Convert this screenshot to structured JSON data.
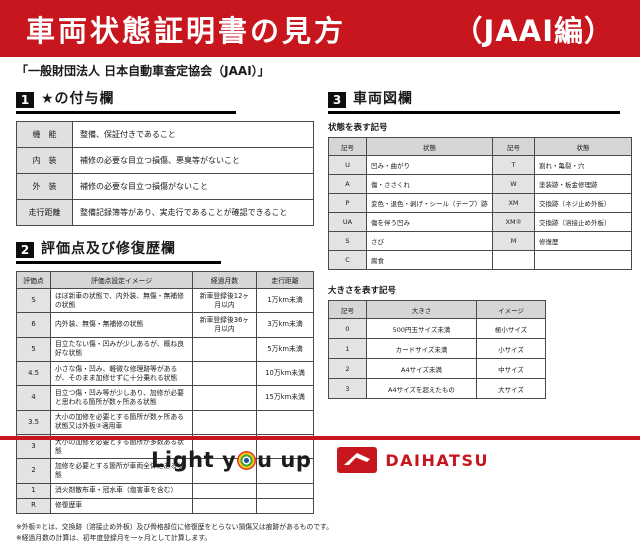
{
  "colors": {
    "banner_red": "#c8161e",
    "table_gray": "#d6d6d6",
    "cell_gray": "#e3e3e3"
  },
  "header": {
    "title": "車両状態証明書の見方",
    "edition": "（JAAI編）"
  },
  "subtitle": "「一般財団法人 日本自動車査定協会（JAAI）」",
  "section1": {
    "number": "1",
    "title": "★の付与欄",
    "table": {
      "rows": [
        [
          "機　能",
          "整備、保証付きであること"
        ],
        [
          "内　装",
          "補修の必要な目立つ損傷、悪臭等がないこと"
        ],
        [
          "外　装",
          "補修の必要な目立つ損傷がないこと"
        ],
        [
          "走行距離",
          "整備記録簿等があり、実走行であることが確認できること"
        ]
      ]
    }
  },
  "section2": {
    "number": "2",
    "title": "評価点及び修復歴欄",
    "table": {
      "headers": [
        "評価点",
        "評価点設定イメージ",
        "経過月数",
        "走行距離"
      ],
      "rows": [
        [
          "S",
          "ほぼ新車の状態で、内外装、無傷・無補修の状態",
          "新車登録後12ヶ月以内",
          "1万km未満"
        ],
        [
          "6",
          "内外装、無傷・無補修の状態",
          "新車登録後36ヶ月以内",
          "3万km未満"
        ],
        [
          "5",
          "目立たない傷・凹みが少しあるが、概ね良好な状態",
          "",
          "5万km未満"
        ],
        [
          "4.5",
          "小さな傷・凹み、軽微な修理跡等があるが、そのまま加修せずに十分乗れる状態",
          "",
          "10万km未満"
        ],
        [
          "4",
          "目立つ傷・凹み等が少しあり、加修が必要と思われる箇所が数ヶ所ある状態",
          "",
          "15万km未満"
        ],
        [
          "3.5",
          "大小の加修を必要とする箇所が数ヶ所ある状態又は外板②適用車",
          "",
          ""
        ],
        [
          "3",
          "大小の加修を必要とする箇所が多数ある状態",
          "",
          ""
        ],
        [
          "2",
          "加修を必要とする箇所が車両全体にある状態",
          "",
          ""
        ],
        [
          "1",
          "消火剤散布車・冠水車（塩害車を含む）",
          "",
          ""
        ],
        [
          "R",
          "修復歴車",
          "",
          ""
        ]
      ]
    }
  },
  "section3": {
    "number": "3",
    "title": "車両図欄",
    "state_table": {
      "label": "状態を表す記号",
      "headers": [
        "記号",
        "状態",
        "記号",
        "状態"
      ],
      "rows": [
        [
          "U",
          "凹み・曲がり",
          "T",
          "割れ・亀裂・穴"
        ],
        [
          "A",
          "傷・ささくれ",
          "W",
          "塗装跡・板金修理跡"
        ],
        [
          "P",
          "変色・退色・剥げ・シール（テープ）跡",
          "XM",
          "交換跡（ネジ止め外板）"
        ],
        [
          "UA",
          "傷を伴う凹み",
          "XM②",
          "交換跡（溶接止め外板）"
        ],
        [
          "S",
          "さび",
          "M",
          "修復歴"
        ],
        [
          "C",
          "腐食",
          "",
          ""
        ]
      ]
    },
    "size_table": {
      "label": "大きさを表す記号",
      "headers": [
        "記号",
        "大きさ",
        "イメージ"
      ],
      "rows": [
        [
          "0",
          "500円玉サイズ未満",
          "極小サイズ"
        ],
        [
          "1",
          "カードサイズ未満",
          "小サイズ"
        ],
        [
          "2",
          "A4サイズ未満",
          "中サイズ"
        ],
        [
          "3",
          "A4サイズを超えたもの",
          "大サイズ"
        ]
      ]
    }
  },
  "notes": [
    "※外板②とは、交換跡（溶接止め外板）及び骨格部位に修復歴をとらない損傷又は痕跡があるものです。",
    "※経過月数の計算は、初年度登録月を一ヶ月として計算します。"
  ],
  "footer": {
    "slogan_left": "Light y",
    "slogan_right": "u up",
    "brand": "DAIHATSU"
  }
}
